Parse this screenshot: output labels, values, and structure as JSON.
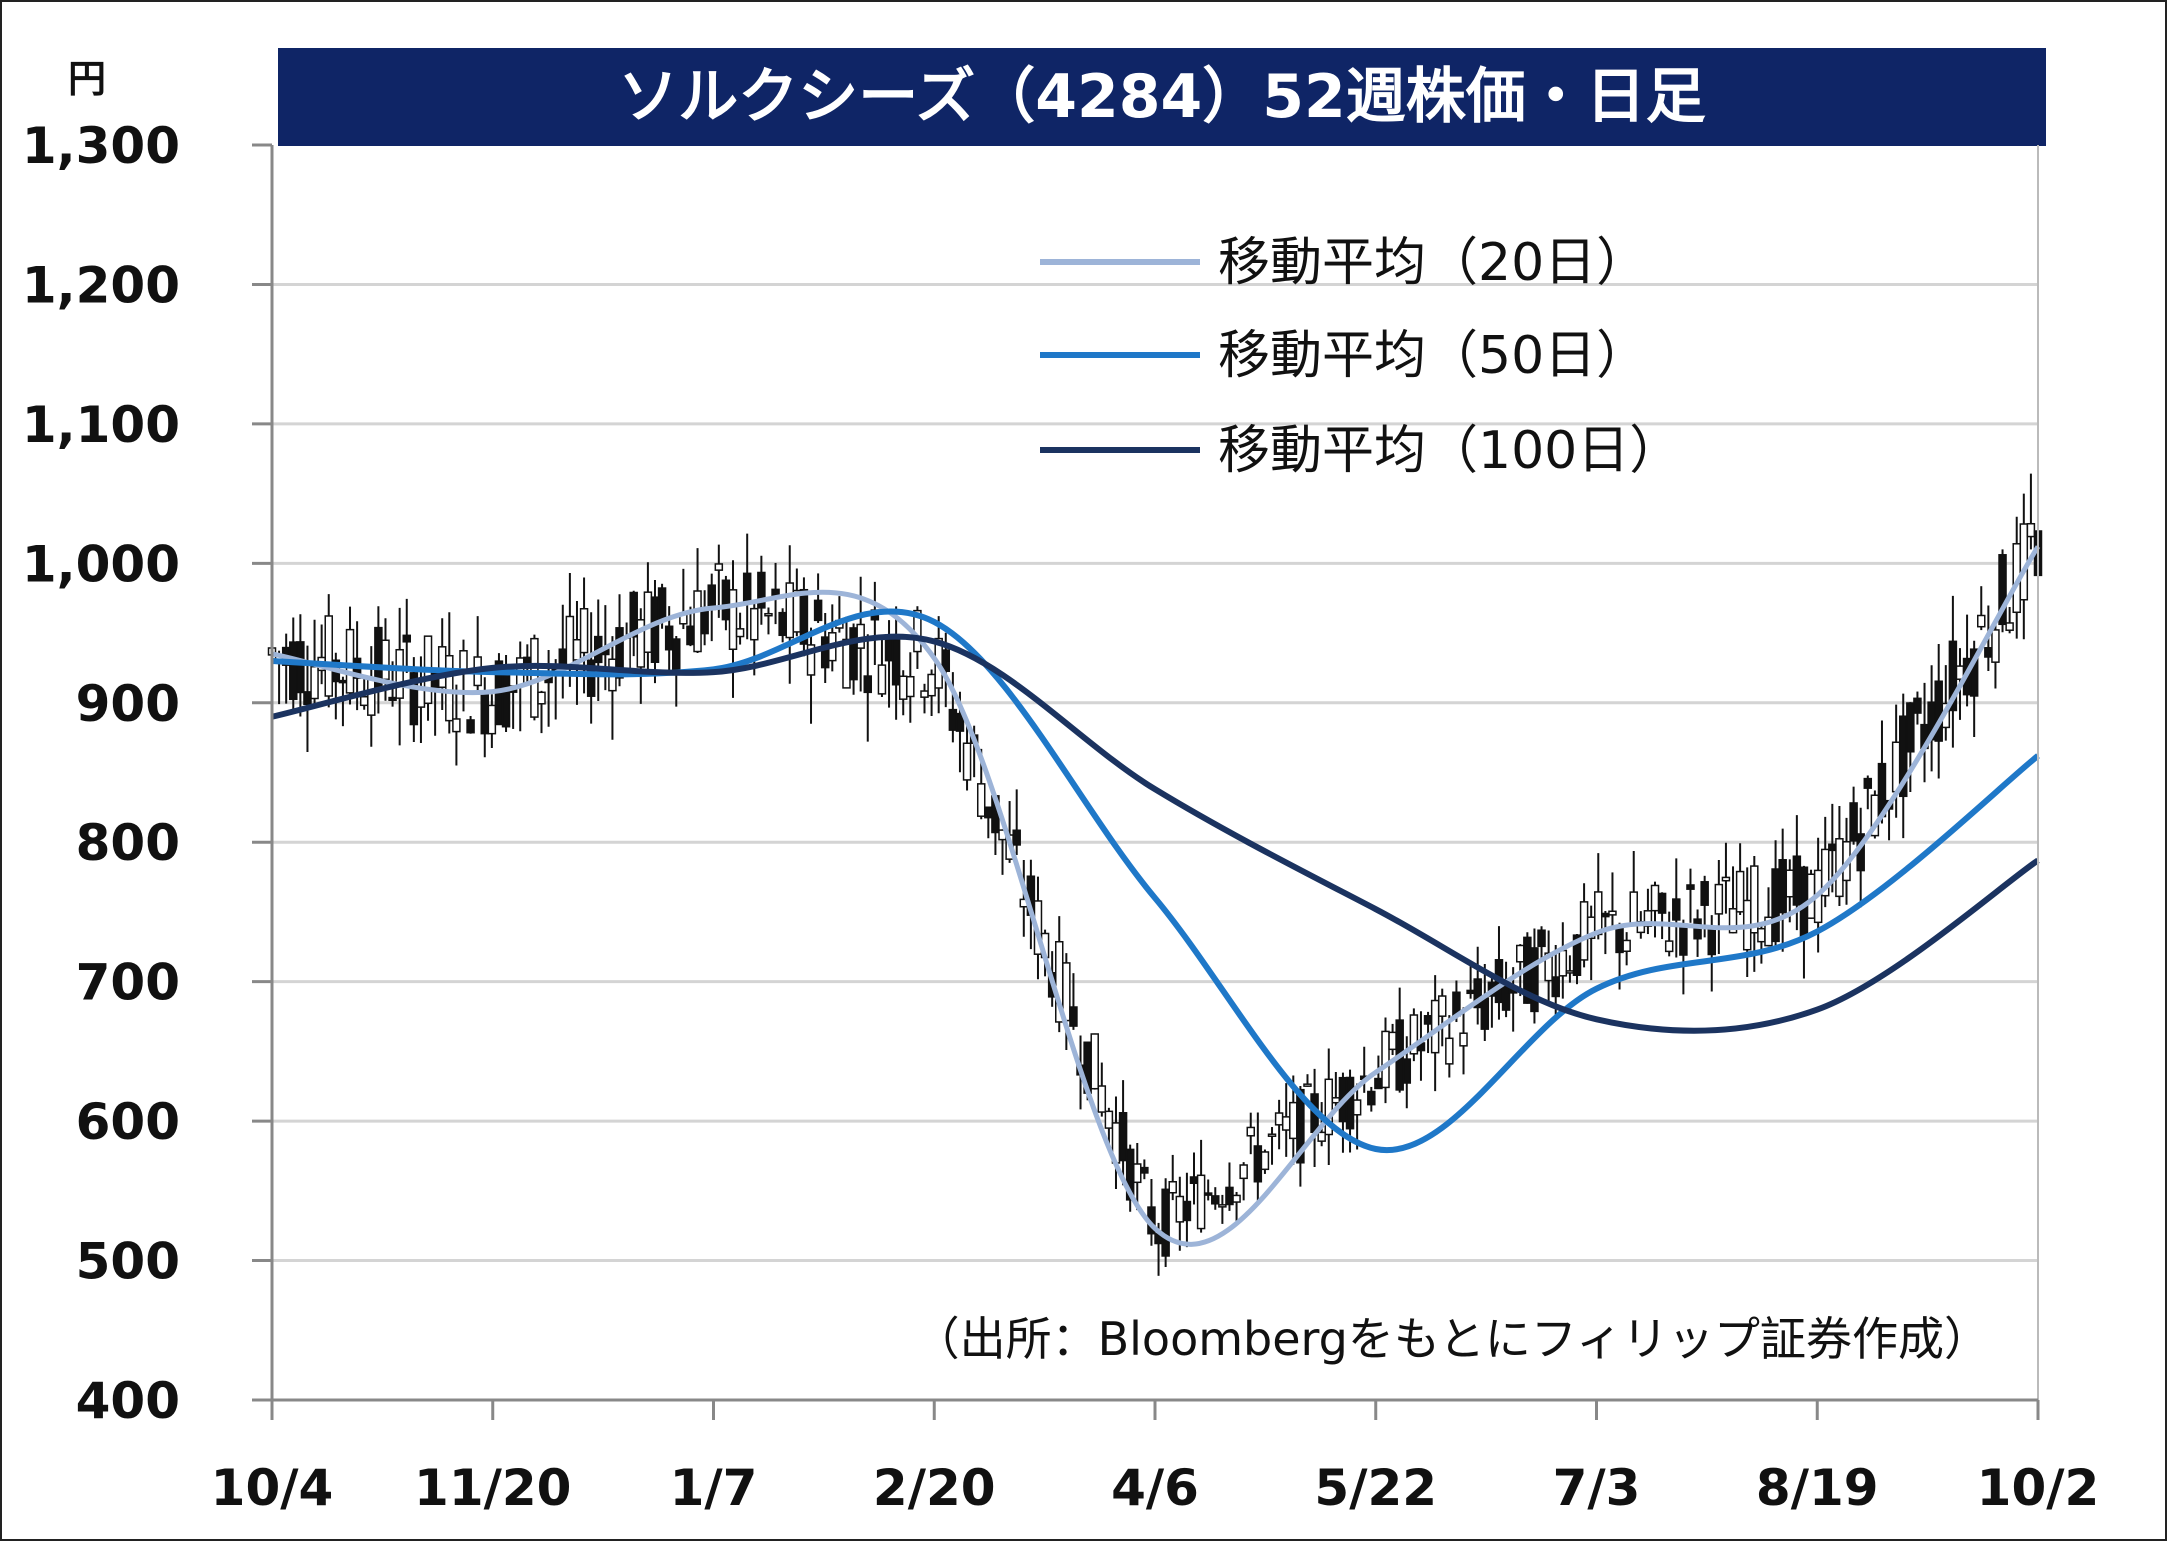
{
  "chart_data": {
    "type": "candlestick",
    "title": "ソルクシーズ（4284）52週株価・日足",
    "unit": "円",
    "source_note": "（出所：Bloombergをもとにフィリップ証券作成）",
    "ylim": [
      400,
      1300
    ],
    "y_ticks": [
      "1,300",
      "1,200",
      "1,100",
      "1,000",
      "900",
      "800",
      "700",
      "600",
      "500",
      "400"
    ],
    "x_ticks": [
      "10/4",
      "11/20",
      "1/7",
      "2/20",
      "4/6",
      "5/22",
      "7/3",
      "8/19",
      "10/2"
    ],
    "grid": true,
    "legend_position": "top-right",
    "colors": {
      "title_bg": "#0f2566",
      "ma20": "#9db4d8",
      "ma50": "#1f78c8",
      "ma100": "#1b3360",
      "candle_up": "#ffffff",
      "candle_down": "#111111",
      "grid": "#d4d4d4"
    },
    "series": [
      {
        "name": "移動平均（20日）",
        "x": [
          "10/4",
          "11/20",
          "1/7",
          "2/20",
          "4/6",
          "5/22",
          "7/3",
          "8/19",
          "10/2"
        ],
        "values": [
          935,
          908,
          968,
          932,
          523,
          635,
          735,
          762,
          1012
        ]
      },
      {
        "name": "移動平均（50日）",
        "x": [
          "10/4",
          "11/20",
          "1/7",
          "2/20",
          "4/6",
          "5/22",
          "7/3",
          "8/19",
          "10/2"
        ],
        "values": [
          930,
          922,
          924,
          958,
          760,
          580,
          695,
          736,
          862
        ]
      },
      {
        "name": "移動平均（100日）",
        "x": [
          "10/4",
          "11/20",
          "1/7",
          "2/20",
          "4/6",
          "5/22",
          "7/3",
          "8/19",
          "10/2"
        ],
        "values": [
          890,
          925,
          922,
          944,
          838,
          752,
          673,
          680,
          787
        ]
      }
    ]
  }
}
